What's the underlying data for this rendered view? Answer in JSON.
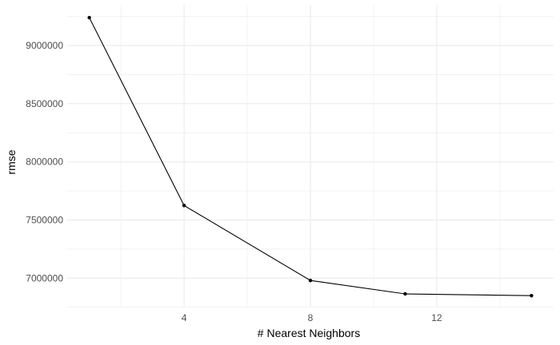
{
  "chart_data": {
    "type": "line",
    "xlabel": "# Nearest Neighbors",
    "ylabel": "rmse",
    "x": [
      1,
      4,
      8,
      11,
      15
    ],
    "y": [
      9240000,
      7625000,
      6980000,
      6865000,
      6850000
    ],
    "xlim": [
      0.3,
      15.7
    ],
    "ylim": [
      6755000,
      9350000
    ],
    "x_major_ticks": [
      4,
      8,
      12
    ],
    "x_tick_labels": [
      "4",
      "8",
      "12"
    ],
    "x_minor_ticks": [
      2,
      6,
      10,
      14
    ],
    "y_major_ticks": [
      7000000,
      7500000,
      8000000,
      8500000,
      9000000
    ],
    "y_tick_labels": [
      "7000000",
      "7500000",
      "8000000",
      "8500000",
      "9000000"
    ],
    "y_minor_ticks": [
      6750000,
      7250000,
      7750000,
      8250000,
      8750000,
      9250000
    ],
    "grid": true,
    "line_color": "#000000",
    "grid_color": "#ebebeb",
    "background": "#ffffff"
  }
}
